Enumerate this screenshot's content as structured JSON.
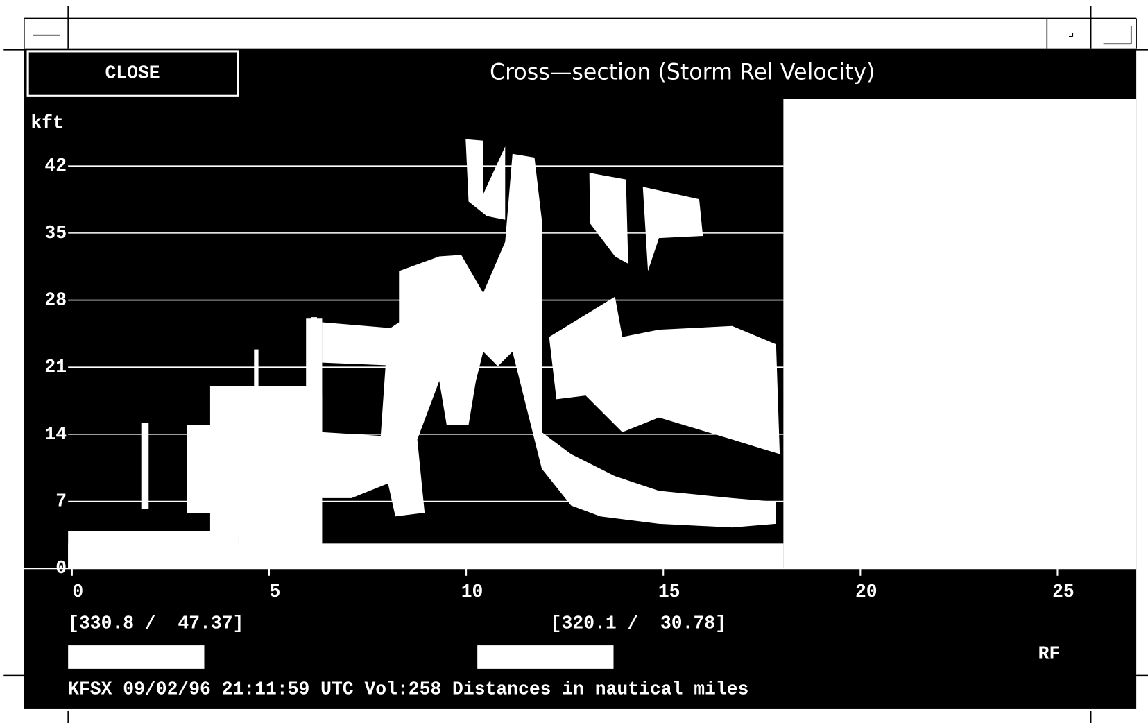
{
  "window": {
    "close_button": "CLOSE",
    "title": "Cross—section (Storm Rel Velocity)"
  },
  "chart_data": {
    "type": "cross-section",
    "y_label": "kft",
    "ylim": [
      0,
      49
    ],
    "yticks": [
      0,
      7,
      14,
      21,
      28,
      35,
      42
    ],
    "xlim": [
      -0.1,
      27
    ],
    "xticks": [
      0,
      5,
      10,
      15,
      20,
      25
    ],
    "grid": true
  },
  "cursor": {
    "left": "[330.8 /  47.37]",
    "right": "[320.1 /  30.78]"
  },
  "mode": "RF",
  "status": "KFSX 09/02/96 21:11:59 UTC Vol:258 Distances in nautical miles"
}
